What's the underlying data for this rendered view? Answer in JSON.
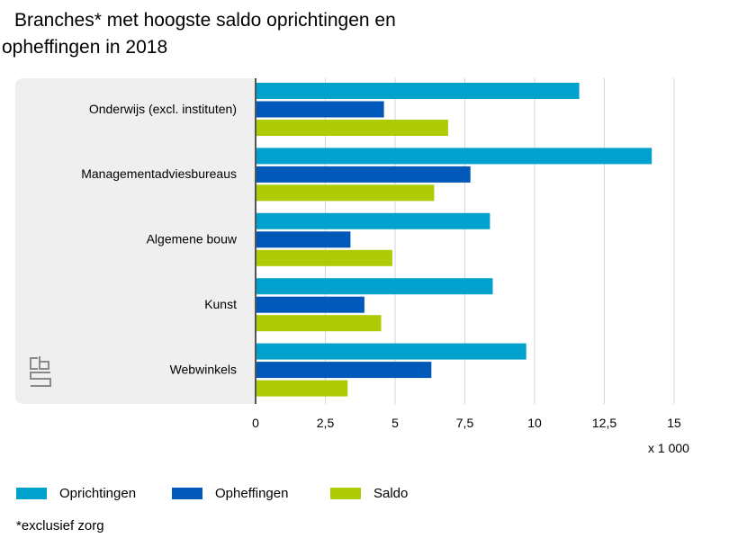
{
  "chart_data": {
    "type": "bar",
    "orientation": "horizontal",
    "title_line1": "Branches* met hoogste saldo oprichtingen en",
    "title_line2": "opheffingen in 2018",
    "categories": [
      "Onderwijs (excl. instituten)",
      "Managementadviesbureaus",
      "Algemene bouw",
      "Kunst",
      "Webwinkels"
    ],
    "series": [
      {
        "name": "Oprichtingen",
        "color": "#00a1cd",
        "values": [
          11.6,
          14.2,
          8.4,
          8.5,
          9.7
        ]
      },
      {
        "name": "Opheffingen",
        "color": "#0058b8",
        "values": [
          4.6,
          7.7,
          3.4,
          3.9,
          6.3
        ]
      },
      {
        "name": "Saldo",
        "color": "#afcb05",
        "values": [
          6.9,
          6.4,
          4.9,
          4.5,
          3.3
        ]
      }
    ],
    "xlim": [
      0,
      15
    ],
    "xticks": [
      "0",
      "2,5",
      "5",
      "7,5",
      "10",
      "12,5",
      "15"
    ],
    "xtick_values": [
      0,
      2.5,
      5,
      7.5,
      10,
      12.5,
      15
    ],
    "unit_label": "x 1 000",
    "footnote": "*exclusief zorg",
    "grid": true,
    "legend_position": "bottom",
    "background_band_color": "#efefef"
  }
}
